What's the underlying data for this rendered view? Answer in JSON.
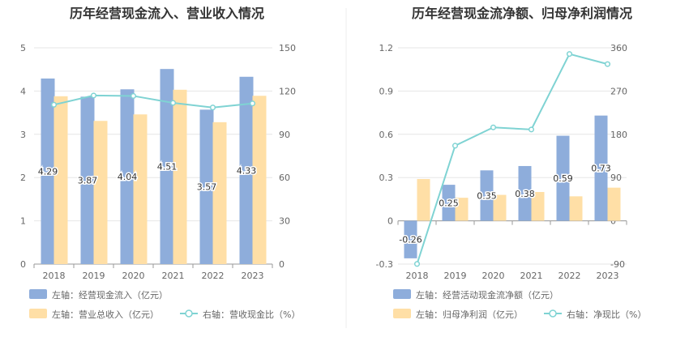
{
  "chart_data": [
    {
      "type": "bar",
      "title": "历年经营现金流入、营业收入情况",
      "categories": [
        "2018",
        "2019",
        "2020",
        "2021",
        "2022",
        "2023"
      ],
      "ylim_left": [
        0,
        5
      ],
      "ylim_right": [
        0,
        150
      ],
      "yticks_left": [
        "0",
        "1",
        "2",
        "3",
        "4",
        "5"
      ],
      "yticks_right": [
        "0",
        "30",
        "60",
        "90",
        "120",
        "150"
      ],
      "series": [
        {
          "name": "左轴：经营现金流入（亿元）",
          "axis": "left",
          "kind": "bar",
          "color": "#8eaddb",
          "values": [
            4.29,
            3.87,
            4.04,
            4.51,
            3.57,
            4.33
          ],
          "labels": [
            "4.29",
            "3.87",
            "4.04",
            "4.51",
            "3.57",
            "4.33"
          ]
        },
        {
          "name": "左轴：营业总收入（亿元）",
          "axis": "left",
          "kind": "bar",
          "color": "#ffdfa6",
          "values": [
            3.88,
            3.31,
            3.46,
            4.03,
            3.28,
            3.89
          ]
        },
        {
          "name": "右轴：营收现金比（%）",
          "axis": "right",
          "kind": "line",
          "color": "#7fd3d3",
          "values": [
            110.5,
            116.9,
            116.6,
            111.8,
            108.6,
            111.4
          ]
        }
      ],
      "grid": true
    },
    {
      "type": "bar",
      "title": "历年经营现金流净额、归母净利润情况",
      "categories": [
        "2018",
        "2019",
        "2020",
        "2021",
        "2022",
        "2023"
      ],
      "ylim_left": [
        -0.3,
        1.2
      ],
      "ylim_right": [
        -90,
        360
      ],
      "yticks_left": [
        "-0.3",
        "0",
        "0.3",
        "0.6",
        "0.9",
        "1.2"
      ],
      "yticks_right": [
        "-90",
        "0",
        "90",
        "180",
        "270",
        "360"
      ],
      "series": [
        {
          "name": "左轴：经营活动现金流净额（亿元）",
          "axis": "left",
          "kind": "bar",
          "color": "#8eaddb",
          "values": [
            -0.26,
            0.25,
            0.35,
            0.38,
            0.59,
            0.73
          ],
          "labels": [
            "-0.26",
            "0.25",
            "0.35",
            "0.38",
            "0.59",
            "0.73"
          ]
        },
        {
          "name": "左轴：归母净利润（亿元）",
          "axis": "left",
          "kind": "bar",
          "color": "#ffdfa6",
          "values": [
            0.29,
            0.16,
            0.18,
            0.2,
            0.17,
            0.23
          ]
        },
        {
          "name": "右轴：净现比（%）",
          "axis": "right",
          "kind": "line",
          "color": "#7fd3d3",
          "values": [
            -89.7,
            156.3,
            194.4,
            190.0,
            347.1,
            326.1
          ]
        }
      ],
      "grid": true
    }
  ]
}
